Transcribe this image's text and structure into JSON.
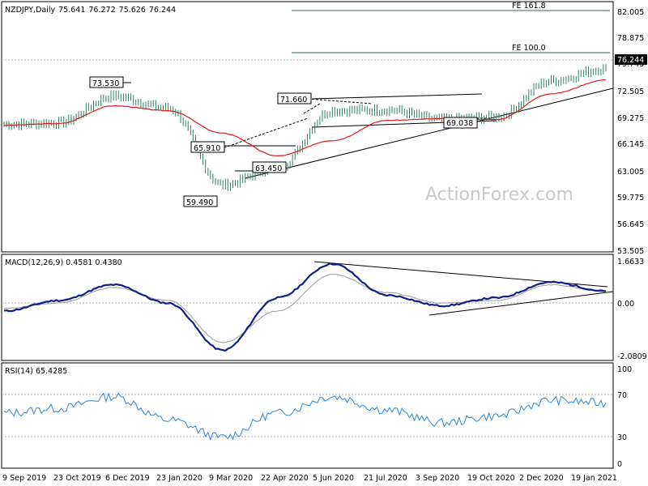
{
  "chart_data": [
    {
      "type": "line",
      "panel": "price",
      "title": "NZDJPY,Daily",
      "ohlc": [
        "75.641",
        "76.272",
        "75.626",
        "76.244"
      ],
      "watermark": "ActionForex.com",
      "last_price_label": "76.244",
      "ylim": [
        53.505,
        83.2
      ],
      "yticks": [
        "82.005",
        "78.875",
        "75.745",
        "72.505",
        "69.275",
        "66.145",
        "63.005",
        "59.775",
        "56.645",
        "53.505"
      ],
      "x_dates": [
        "9 Sep 2019",
        "23 Oct 2019",
        "6 Dec 2019",
        "23 Jan 2020",
        "9 Mar 2020",
        "22 Apr 2020",
        "5 Jun 2020",
        "21 Jul 2020",
        "3 Sep 2020",
        "19 Oct 2020",
        "2 Dec 2020",
        "19 Jan 2021"
      ],
      "series": [
        {
          "x": [
            "9 Sep 2019",
            "23 Oct 2019",
            "6 Dec 2019",
            "23 Jan 2020",
            "9 Mar 2020",
            "22 Apr 2020",
            "5 Jun 2020",
            "21 Jul 2020",
            "3 Sep 2020",
            "19 Oct 2020",
            "2 Dec 2020",
            "19 Jan 2021"
          ],
          "values": [
            69.3,
            69.5,
            72.8,
            71.3,
            61.8,
            64.0,
            71.0,
            71.1,
            69.9,
            70.2,
            74.7,
            76.2
          ]
        },
        {
          "x": [
            "9 Sep 2019",
            "23 Oct 2019",
            "6 Dec 2019",
            "23 Jan 2020",
            "9 Mar 2020",
            "22 Apr 2020",
            "5 Jun 2020",
            "21 Jul 2020",
            "3 Sep 2020",
            "19 Oct 2020",
            "2 Dec 2020",
            "19 Jan 2021"
          ],
          "values": [
            69.2,
            69.4,
            71.6,
            71.0,
            68.2,
            65.4,
            67.3,
            69.8,
            70.0,
            69.9,
            73.1,
            74.8
          ]
        }
      ],
      "levels": [
        {
          "label": "FE 161.8",
          "value": 82.0
        },
        {
          "label": "FE 100.0",
          "value": 77.7
        }
      ],
      "annotations": [
        {
          "label": "73.530",
          "x": "6 Dec 2019",
          "value": 73.53
        },
        {
          "label": "71.660",
          "x": "5 Jun 2020",
          "value": 71.66
        },
        {
          "label": "65.910",
          "x": "9 Mar 2020",
          "value": 65.91
        },
        {
          "label": "63.450",
          "x": "22 Apr 2020",
          "value": 63.45
        },
        {
          "label": "59.490",
          "x": "9 Mar 2020",
          "value": 59.49
        },
        {
          "label": "69.038",
          "x": "3 Sep 2020",
          "value": 69.038
        }
      ]
    },
    {
      "type": "line",
      "panel": "macd",
      "title": "MACD(12,26,9) 0.4581 0.4380",
      "ylim": [
        -2.25,
        1.8
      ],
      "yticks": [
        "1.6633",
        "0.00",
        "-2.0809"
      ],
      "series": [
        {
          "x": [
            "9 Sep 2019",
            "23 Oct 2019",
            "6 Dec 2019",
            "23 Jan 2020",
            "9 Mar 2020",
            "22 Apr 2020",
            "5 Jun 2020",
            "21 Jul 2020",
            "3 Sep 2020",
            "19 Oct 2020",
            "2 Dec 2020",
            "19 Jan 2021"
          ],
          "values": [
            -0.3,
            0.1,
            0.7,
            0.0,
            -1.8,
            0.2,
            1.5,
            0.3,
            -0.1,
            0.2,
            0.8,
            0.46
          ]
        },
        {
          "x": [
            "9 Sep 2019",
            "23 Oct 2019",
            "6 Dec 2019",
            "23 Jan 2020",
            "9 Mar 2020",
            "22 Apr 2020",
            "5 Jun 2020",
            "21 Jul 2020",
            "3 Sep 2020",
            "19 Oct 2020",
            "2 Dec 2020",
            "19 Jan 2021"
          ],
          "values": [
            -0.2,
            0.0,
            0.6,
            0.1,
            -1.5,
            -0.3,
            1.1,
            0.4,
            0.0,
            0.1,
            0.7,
            0.44
          ]
        }
      ]
    },
    {
      "type": "line",
      "panel": "rsi",
      "title": "RSI(14) 65.4285",
      "ylim": [
        0,
        100
      ],
      "yticks": [
        "100",
        "70",
        "30",
        "0"
      ],
      "series": [
        {
          "x": [
            "9 Sep 2019",
            "23 Oct 2019",
            "6 Dec 2019",
            "23 Jan 2020",
            "9 Mar 2020",
            "22 Apr 2020",
            "5 Jun 2020",
            "21 Jul 2020",
            "3 Sep 2020",
            "19 Oct 2020",
            "2 Dec 2020",
            "19 Jan 2021"
          ],
          "values": [
            55,
            60,
            72,
            48,
            30,
            55,
            72,
            58,
            45,
            52,
            68,
            65.4
          ]
        }
      ]
    }
  ]
}
